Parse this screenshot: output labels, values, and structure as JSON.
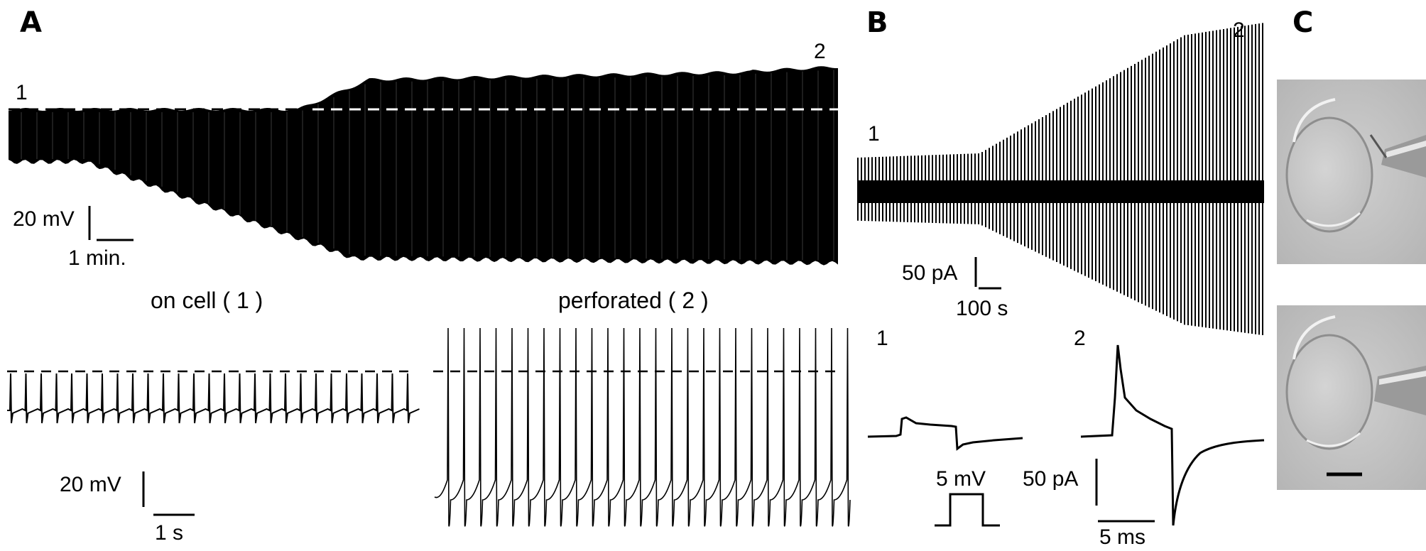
{
  "panels": {
    "a": {
      "label": "A",
      "trace_marks": [
        "1",
        "2"
      ],
      "scale": {
        "voltage": "20 mV",
        "time": "1 min."
      },
      "sub_titles": [
        "on cell ( 1 )",
        "perforated ( 2 )"
      ],
      "sub_scale": {
        "voltage": "20 mV",
        "time": "1 s"
      }
    },
    "b": {
      "label": "B",
      "trace_marks": [
        "1",
        "2"
      ],
      "scale": {
        "current": "50 pA",
        "time": "100 s"
      },
      "sub_marks": [
        "1",
        "2"
      ],
      "step_label": "5 mV",
      "sub_scale": {
        "current": "50 pA",
        "time": "5 ms"
      }
    },
    "c": {
      "label": "C"
    }
  },
  "colors": {
    "trace": "#000000",
    "baseline_dash_top": "#ffffff",
    "baseline_dash": "#000000"
  }
}
